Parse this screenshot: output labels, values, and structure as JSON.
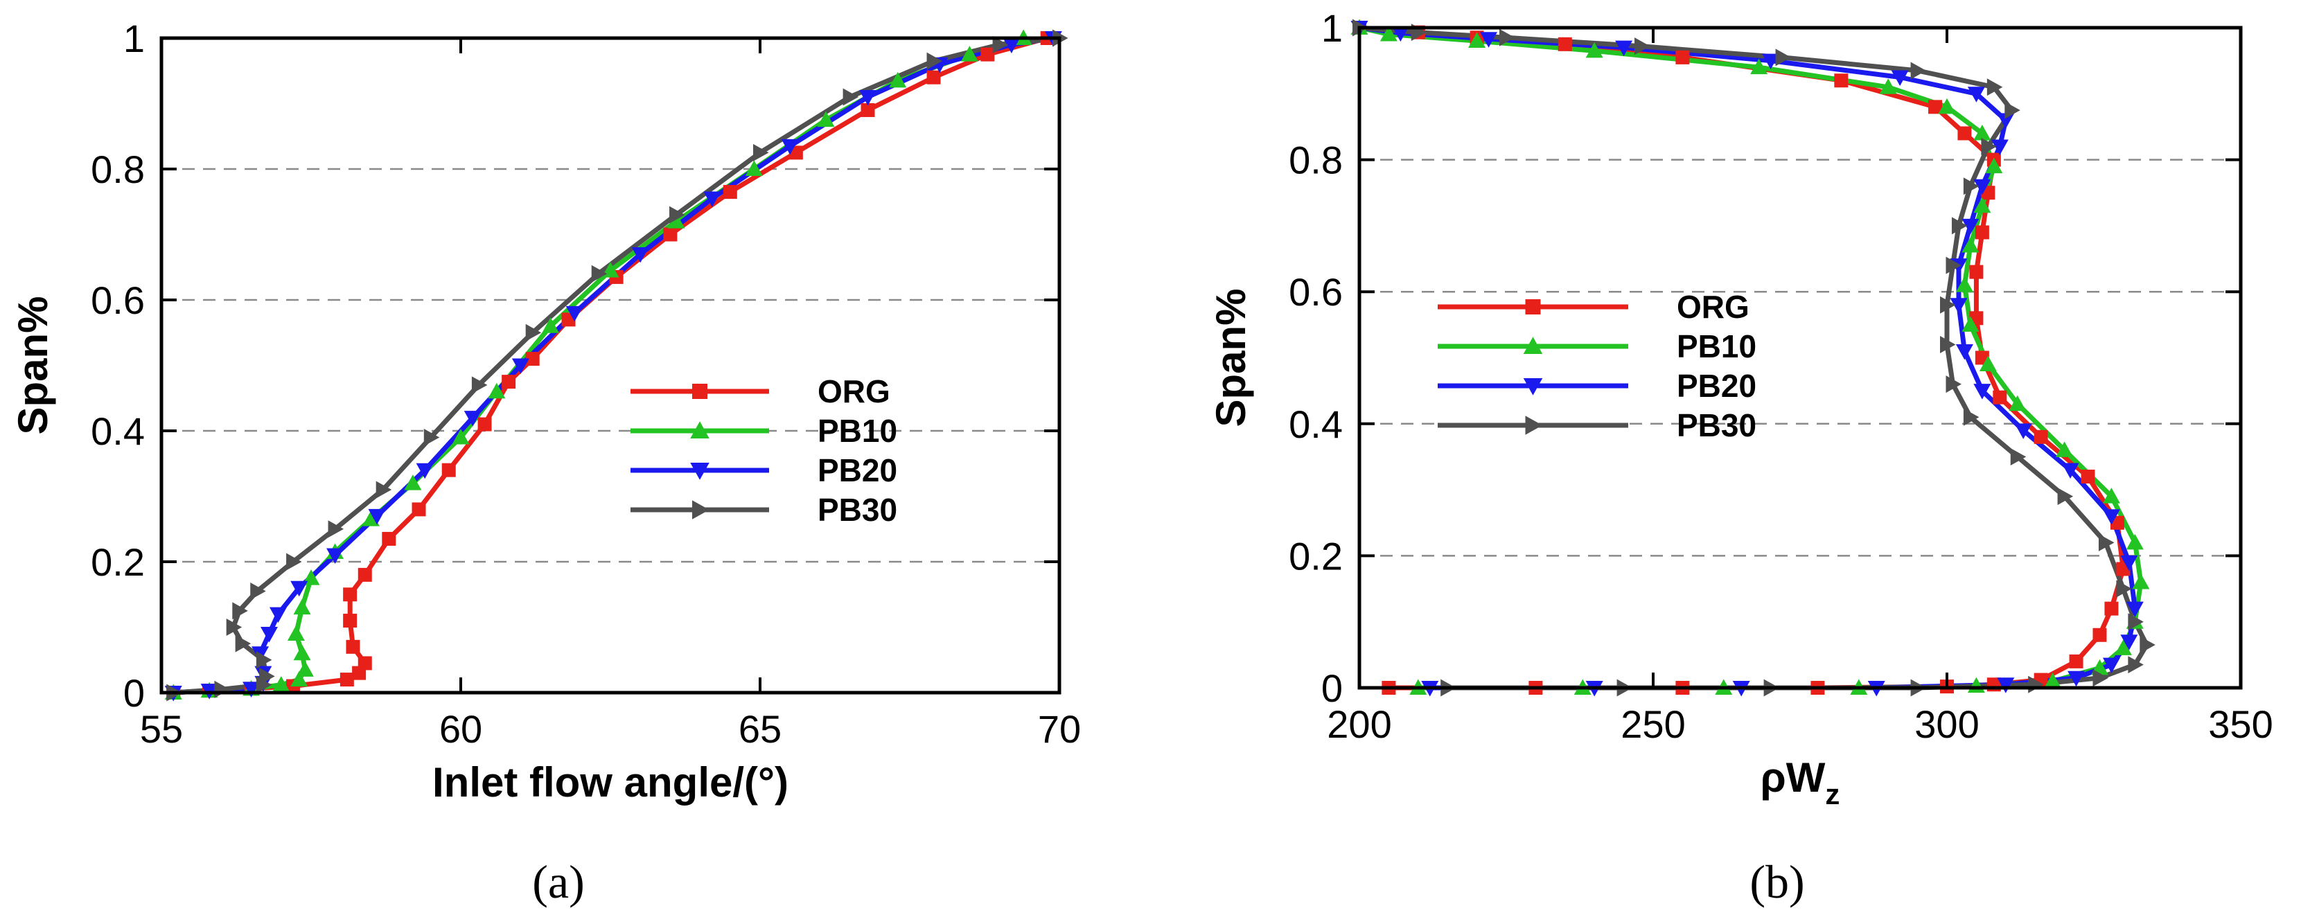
{
  "figure": {
    "caption_a": "(a)",
    "caption_b": "(b)"
  },
  "colors": {
    "ORG": "#e8201a",
    "PB10": "#22c322",
    "PB20": "#1a1aee",
    "PB30": "#505050"
  },
  "chart_data": [
    {
      "type": "line",
      "panel": "a",
      "xlabel": "Inlet flow angle/(°)",
      "ylabel": "Span%",
      "xlim": [
        55,
        70
      ],
      "ylim": [
        0,
        1
      ],
      "xticks": [
        "55",
        "60",
        "65",
        "70"
      ],
      "yticks": [
        "0",
        "0.2",
        "0.4",
        "0.6",
        "0.8",
        "1"
      ],
      "grid": "horizontal dashed",
      "legend": "center-right",
      "series": [
        {
          "name": "ORG",
          "marker": "square",
          "points": [
            [
              55.2,
              0
            ],
            [
              55.8,
              0.003
            ],
            [
              56.5,
              0.006
            ],
            [
              57.2,
              0.01
            ],
            [
              58.1,
              0.02
            ],
            [
              58.3,
              0.03
            ],
            [
              58.4,
              0.045
            ],
            [
              58.2,
              0.07
            ],
            [
              58.15,
              0.11
            ],
            [
              58.15,
              0.15
            ],
            [
              58.4,
              0.18
            ],
            [
              58.8,
              0.235
            ],
            [
              59.3,
              0.28
            ],
            [
              59.8,
              0.34
            ],
            [
              60.4,
              0.41
            ],
            [
              60.8,
              0.475
            ],
            [
              61.2,
              0.51
            ],
            [
              61.8,
              0.57
            ],
            [
              62.6,
              0.635
            ],
            [
              63.5,
              0.7
            ],
            [
              64.5,
              0.765
            ],
            [
              65.6,
              0.825
            ],
            [
              66.8,
              0.89
            ],
            [
              67.9,
              0.94
            ],
            [
              68.8,
              0.975
            ],
            [
              69.8,
              1.0
            ]
          ]
        },
        {
          "name": "PB10",
          "marker": "triangle-up",
          "points": [
            [
              55.2,
              0
            ],
            [
              55.8,
              0.003
            ],
            [
              56.5,
              0.006
            ],
            [
              57.0,
              0.012
            ],
            [
              57.3,
              0.02
            ],
            [
              57.4,
              0.035
            ],
            [
              57.35,
              0.06
            ],
            [
              57.25,
              0.09
            ],
            [
              57.35,
              0.13
            ],
            [
              57.5,
              0.175
            ],
            [
              57.9,
              0.215
            ],
            [
              58.5,
              0.265
            ],
            [
              59.2,
              0.32
            ],
            [
              60.0,
              0.39
            ],
            [
              60.6,
              0.46
            ],
            [
              61.5,
              0.56
            ],
            [
              62.5,
              0.645
            ],
            [
              63.6,
              0.72
            ],
            [
              64.9,
              0.8
            ],
            [
              66.1,
              0.875
            ],
            [
              67.3,
              0.935
            ],
            [
              68.5,
              0.975
            ],
            [
              69.4,
              1.0
            ]
          ]
        },
        {
          "name": "PB20",
          "marker": "triangle-down",
          "points": [
            [
              55.2,
              0
            ],
            [
              55.8,
              0.003
            ],
            [
              56.5,
              0.006
            ],
            [
              56.7,
              0.015
            ],
            [
              56.7,
              0.03
            ],
            [
              56.65,
              0.06
            ],
            [
              56.8,
              0.09
            ],
            [
              56.95,
              0.12
            ],
            [
              57.3,
              0.16
            ],
            [
              57.9,
              0.21
            ],
            [
              58.6,
              0.27
            ],
            [
              59.4,
              0.34
            ],
            [
              60.2,
              0.42
            ],
            [
              61.0,
              0.5
            ],
            [
              61.9,
              0.58
            ],
            [
              63.0,
              0.67
            ],
            [
              64.2,
              0.755
            ],
            [
              65.5,
              0.835
            ],
            [
              66.8,
              0.91
            ],
            [
              68.0,
              0.96
            ],
            [
              69.2,
              0.99
            ],
            [
              69.9,
              1.0
            ]
          ]
        },
        {
          "name": "PB30",
          "marker": "triangle-right",
          "points": [
            [
              55.2,
              0
            ],
            [
              56.0,
              0.005
            ],
            [
              56.7,
              0.012
            ],
            [
              56.75,
              0.025
            ],
            [
              56.7,
              0.05
            ],
            [
              56.35,
              0.075
            ],
            [
              56.2,
              0.1
            ],
            [
              56.3,
              0.125
            ],
            [
              56.6,
              0.155
            ],
            [
              57.2,
              0.2
            ],
            [
              57.9,
              0.25
            ],
            [
              58.7,
              0.31
            ],
            [
              59.5,
              0.39
            ],
            [
              60.3,
              0.47
            ],
            [
              61.2,
              0.55
            ],
            [
              62.3,
              0.64
            ],
            [
              63.6,
              0.73
            ],
            [
              65.0,
              0.825
            ],
            [
              66.5,
              0.91
            ],
            [
              67.9,
              0.965
            ],
            [
              69.0,
              0.99
            ],
            [
              70.0,
              1.0
            ]
          ]
        }
      ]
    },
    {
      "type": "line",
      "panel": "b",
      "xlabel": "ρW",
      "xlabel_sub": "z",
      "ylabel": "Span%",
      "xlim": [
        200,
        350
      ],
      "ylim": [
        0,
        1
      ],
      "xticks": [
        "200",
        "250",
        "300",
        "350"
      ],
      "yticks": [
        "0",
        "0.2",
        "0.4",
        "0.6",
        "0.8",
        "1"
      ],
      "grid": "horizontal dashed",
      "legend": "center-left",
      "series": [
        {
          "name": "ORG",
          "marker": "square",
          "points": [
            [
              205,
              0
            ],
            [
              230,
              0
            ],
            [
              255,
              0
            ],
            [
              278,
              0
            ],
            [
              300,
              0.002
            ],
            [
              308,
              0.005
            ],
            [
              316,
              0.012
            ],
            [
              322,
              0.04
            ],
            [
              326,
              0.08
            ],
            [
              328,
              0.12
            ],
            [
              330,
              0.18
            ],
            [
              329,
              0.25
            ],
            [
              324,
              0.32
            ],
            [
              316,
              0.38
            ],
            [
              309,
              0.44
            ],
            [
              306,
              0.5
            ],
            [
              305,
              0.56
            ],
            [
              305,
              0.63
            ],
            [
              306,
              0.69
            ],
            [
              307,
              0.75
            ],
            [
              308,
              0.8
            ],
            [
              303,
              0.84
            ],
            [
              298,
              0.88
            ],
            [
              282,
              0.92
            ],
            [
              255,
              0.955
            ],
            [
              235,
              0.975
            ],
            [
              220,
              0.985
            ],
            [
              210,
              0.993
            ],
            [
              200,
              1.0
            ]
          ]
        },
        {
          "name": "PB10",
          "marker": "triangle-up",
          "points": [
            [
              210,
              0
            ],
            [
              238,
              0
            ],
            [
              262,
              0
            ],
            [
              285,
              0
            ],
            [
              305,
              0.003
            ],
            [
              318,
              0.01
            ],
            [
              326,
              0.03
            ],
            [
              330,
              0.06
            ],
            [
              332,
              0.1
            ],
            [
              333,
              0.16
            ],
            [
              332,
              0.22
            ],
            [
              328,
              0.29
            ],
            [
              320,
              0.36
            ],
            [
              312,
              0.43
            ],
            [
              307,
              0.49
            ],
            [
              304,
              0.55
            ],
            [
              303,
              0.61
            ],
            [
              304,
              0.67
            ],
            [
              306,
              0.73
            ],
            [
              308,
              0.79
            ],
            [
              306,
              0.84
            ],
            [
              300,
              0.88
            ],
            [
              290,
              0.91
            ],
            [
              268,
              0.94
            ],
            [
              240,
              0.965
            ],
            [
              220,
              0.98
            ],
            [
              205,
              0.99
            ],
            [
              200,
              1.0
            ]
          ]
        },
        {
          "name": "PB20",
          "marker": "triangle-down",
          "points": [
            [
              212,
              0
            ],
            [
              240,
              0
            ],
            [
              265,
              0
            ],
            [
              288,
              0
            ],
            [
              310,
              0.005
            ],
            [
              322,
              0.015
            ],
            [
              328,
              0.035
            ],
            [
              331,
              0.07
            ],
            [
              332,
              0.12
            ],
            [
              331,
              0.19
            ],
            [
              328,
              0.26
            ],
            [
              321,
              0.33
            ],
            [
              313,
              0.39
            ],
            [
              306,
              0.45
            ],
            [
              303,
              0.51
            ],
            [
              302,
              0.58
            ],
            [
              302,
              0.64
            ],
            [
              304,
              0.7
            ],
            [
              306,
              0.76
            ],
            [
              309,
              0.82
            ],
            [
              310,
              0.86
            ],
            [
              305,
              0.9
            ],
            [
              292,
              0.925
            ],
            [
              270,
              0.95
            ],
            [
              245,
              0.97
            ],
            [
              222,
              0.983
            ],
            [
              207,
              0.992
            ],
            [
              200,
              1.0
            ]
          ]
        },
        {
          "name": "PB30",
          "marker": "triangle-right",
          "points": [
            [
              215,
              0
            ],
            [
              245,
              0
            ],
            [
              270,
              0
            ],
            [
              295,
              0
            ],
            [
              315,
              0.005
            ],
            [
              326,
              0.015
            ],
            [
              332,
              0.035
            ],
            [
              334,
              0.065
            ],
            [
              332,
              0.1
            ],
            [
              330,
              0.15
            ],
            [
              327,
              0.22
            ],
            [
              320,
              0.29
            ],
            [
              312,
              0.35
            ],
            [
              304,
              0.41
            ],
            [
              301,
              0.46
            ],
            [
              300,
              0.52
            ],
            [
              300,
              0.58
            ],
            [
              301,
              0.64
            ],
            [
              302,
              0.7
            ],
            [
              304,
              0.76
            ],
            [
              307,
              0.82
            ],
            [
              311,
              0.875
            ],
            [
              308,
              0.91
            ],
            [
              295,
              0.935
            ],
            [
              272,
              0.955
            ],
            [
              248,
              0.972
            ],
            [
              225,
              0.985
            ],
            [
              210,
              0.993
            ],
            [
              200,
              1.0
            ]
          ]
        }
      ]
    }
  ]
}
